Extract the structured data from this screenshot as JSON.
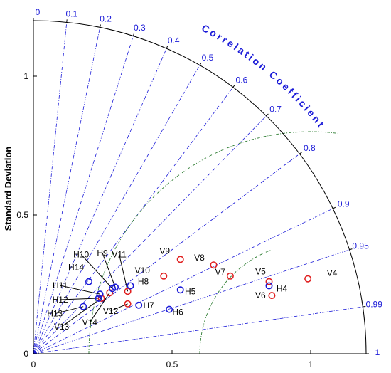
{
  "chart_data": {
    "type": "scatter",
    "title": "",
    "ylabel": "Standard Deviation",
    "correlation_label": "Correlation Coefficient",
    "std_range": [
      0,
      1.2
    ],
    "std_ticks": [
      {
        "v": 0,
        "label": "0"
      },
      {
        "v": 0.5,
        "label": "0.5"
      },
      {
        "v": 1,
        "label": "1"
      }
    ],
    "corr_ticks": [
      {
        "v": 0,
        "label": "0"
      },
      {
        "v": 0.1,
        "label": "0.1"
      },
      {
        "v": 0.2,
        "label": "0.2"
      },
      {
        "v": 0.3,
        "label": "0.3"
      },
      {
        "v": 0.4,
        "label": "0.4"
      },
      {
        "v": 0.5,
        "label": "0.5"
      },
      {
        "v": 0.6,
        "label": "0.6"
      },
      {
        "v": 0.7,
        "label": "0.7"
      },
      {
        "v": 0.8,
        "label": "0.8"
      },
      {
        "v": 0.9,
        "label": "0.9"
      },
      {
        "v": 0.95,
        "label": "0.95"
      },
      {
        "v": 0.99,
        "label": "0.99"
      },
      {
        "v": 1,
        "label": "1"
      }
    ],
    "rms_arcs": [
      0.4,
      0.8
    ],
    "colors": {
      "frame": "#000000",
      "corr_lines": "#1a1ad8",
      "rms_arcs": "#2e7d32",
      "H": "#1a1ad8",
      "V": "#e02020"
    },
    "points": [
      {
        "name": "V4",
        "group": "V",
        "x": 0.99,
        "y": 0.27
      },
      {
        "name": "V5",
        "group": "V",
        "x": 0.85,
        "y": 0.26
      },
      {
        "name": "V6",
        "group": "V",
        "x": 0.86,
        "y": 0.21
      },
      {
        "name": "V7",
        "group": "V",
        "x": 0.71,
        "y": 0.28
      },
      {
        "name": "V8",
        "group": "V",
        "x": 0.65,
        "y": 0.32
      },
      {
        "name": "V9",
        "group": "V",
        "x": 0.53,
        "y": 0.34
      },
      {
        "name": "V10",
        "group": "V",
        "x": 0.47,
        "y": 0.28
      },
      {
        "name": "V11",
        "group": "V",
        "x": 0.34,
        "y": 0.225
      },
      {
        "name": "V12",
        "group": "V",
        "x": 0.34,
        "y": 0.18
      },
      {
        "name": "V13",
        "group": "V",
        "x": 0.245,
        "y": 0.2
      },
      {
        "name": "V14",
        "group": "V",
        "x": 0.275,
        "y": 0.22
      },
      {
        "name": "H4",
        "group": "H",
        "x": 0.85,
        "y": 0.245
      },
      {
        "name": "H5",
        "group": "H",
        "x": 0.53,
        "y": 0.23
      },
      {
        "name": "H6",
        "group": "H",
        "x": 0.49,
        "y": 0.16
      },
      {
        "name": "H7",
        "group": "H",
        "x": 0.38,
        "y": 0.175
      },
      {
        "name": "H8",
        "group": "H",
        "x": 0.35,
        "y": 0.245
      },
      {
        "name": "H9",
        "group": "H",
        "x": 0.295,
        "y": 0.24
      },
      {
        "name": "H10",
        "group": "H",
        "x": 0.285,
        "y": 0.235
      },
      {
        "name": "H11",
        "group": "H",
        "x": 0.24,
        "y": 0.215
      },
      {
        "name": "H12",
        "group": "H",
        "x": 0.235,
        "y": 0.2
      },
      {
        "name": "H13",
        "group": "H",
        "x": 0.18,
        "y": 0.17
      },
      {
        "name": "H14",
        "group": "H",
        "x": 0.2,
        "y": 0.26
      }
    ]
  }
}
